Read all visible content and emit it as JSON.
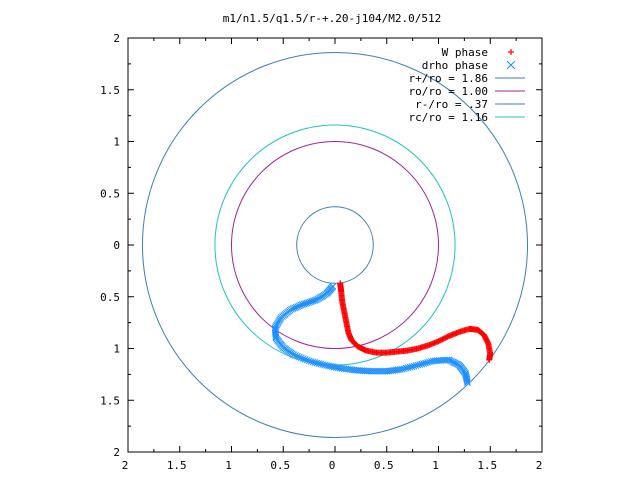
{
  "chart_data": {
    "type": "scatter",
    "title": "m1/n1.5/q1.5/r-+.20-j104/M2.0/512",
    "xlim": [
      -2,
      2
    ],
    "ylim": [
      -2,
      2
    ],
    "x_tick_labels": [
      "2",
      "1.5",
      "1",
      "0.5",
      "0",
      "0.5",
      "1",
      "1.5",
      "2"
    ],
    "y_tick_labels": [
      "2",
      "1.5",
      "1",
      "0.5",
      "0",
      "0.5",
      "1",
      "1.5",
      "2"
    ],
    "grid": false,
    "legend_position": "top-right",
    "series": [
      {
        "name": "W phase",
        "marker": "+",
        "color": "#ff0000",
        "points": [
          [
            0.05,
            -0.37
          ],
          [
            0.06,
            -0.45
          ],
          [
            0.07,
            -0.55
          ],
          [
            0.09,
            -0.65
          ],
          [
            0.11,
            -0.75
          ],
          [
            0.13,
            -0.85
          ],
          [
            0.16,
            -0.92
          ],
          [
            0.22,
            -0.98
          ],
          [
            0.3,
            -1.02
          ],
          [
            0.4,
            -1.04
          ],
          [
            0.5,
            -1.04
          ],
          [
            0.6,
            -1.03
          ],
          [
            0.7,
            -1.02
          ],
          [
            0.8,
            -1.0
          ],
          [
            0.9,
            -0.97
          ],
          [
            1.0,
            -0.93
          ],
          [
            1.1,
            -0.88
          ],
          [
            1.2,
            -0.84
          ],
          [
            1.3,
            -0.81
          ],
          [
            1.38,
            -0.82
          ],
          [
            1.44,
            -0.87
          ],
          [
            1.48,
            -0.95
          ],
          [
            1.5,
            -1.05
          ],
          [
            1.49,
            -1.11
          ]
        ]
      },
      {
        "name": "drho phase",
        "marker": "x",
        "color": "#1e90ff",
        "points": [
          [
            -0.02,
            -0.4
          ],
          [
            -0.08,
            -0.47
          ],
          [
            -0.18,
            -0.53
          ],
          [
            -0.3,
            -0.57
          ],
          [
            -0.42,
            -0.62
          ],
          [
            -0.52,
            -0.7
          ],
          [
            -0.58,
            -0.8
          ],
          [
            -0.57,
            -0.9
          ],
          [
            -0.5,
            -0.99
          ],
          [
            -0.4,
            -1.06
          ],
          [
            -0.25,
            -1.12
          ],
          [
            -0.1,
            -1.16
          ],
          [
            0.05,
            -1.19
          ],
          [
            0.2,
            -1.21
          ],
          [
            0.35,
            -1.22
          ],
          [
            0.5,
            -1.22
          ],
          [
            0.65,
            -1.2
          ],
          [
            0.8,
            -1.16
          ],
          [
            0.95,
            -1.12
          ],
          [
            1.1,
            -1.11
          ],
          [
            1.2,
            -1.16
          ],
          [
            1.26,
            -1.24
          ],
          [
            1.28,
            -1.33
          ]
        ]
      },
      {
        "name": "r+/ro = 1.86",
        "type": "circle",
        "radius": 1.86,
        "color": "#3a7fbf"
      },
      {
        "name": "ro/ro = 1.00",
        "type": "circle",
        "radius": 1.0,
        "color": "#a020a0"
      },
      {
        "name": "r-/ro = .37",
        "type": "circle",
        "radius": 0.37,
        "color": "#3a7fbf"
      },
      {
        "name": "rc/ro = 1.16",
        "type": "circle",
        "radius": 1.16,
        "color": "#20c0c8"
      }
    ]
  }
}
